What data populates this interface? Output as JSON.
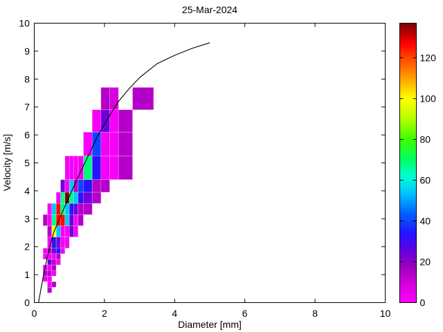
{
  "chart_data": {
    "type": "heatmap",
    "title": "25-Mar-2024",
    "xlabel": "Diameter [mm]",
    "ylabel": "Velocity [m/s]",
    "xlim": [
      0,
      10
    ],
    "ylim": [
      0,
      10
    ],
    "xticks": [
      0,
      2,
      4,
      6,
      8,
      10
    ],
    "yticks": [
      0,
      1,
      2,
      3,
      4,
      5,
      6,
      7,
      8,
      9,
      10
    ],
    "grid": false,
    "legend": "none",
    "colorbar": {
      "position": "right",
      "min": 0,
      "max": 137,
      "ticks": [
        0,
        20,
        40,
        60,
        80,
        100,
        120
      ],
      "colormap_stops": [
        [
          0,
          "#FF00FF"
        ],
        [
          10,
          "#D000D8"
        ],
        [
          18,
          "#9900BB"
        ],
        [
          26,
          "#5F00E6"
        ],
        [
          34,
          "#2414FF"
        ],
        [
          44,
          "#0064FF"
        ],
        [
          54,
          "#00C8FF"
        ],
        [
          62,
          "#00FFD2"
        ],
        [
          70,
          "#00FF64"
        ],
        [
          80,
          "#3CFF00"
        ],
        [
          90,
          "#B4FF00"
        ],
        [
          100,
          "#FFFF00"
        ],
        [
          110,
          "#FFA000"
        ],
        [
          120,
          "#FF4600"
        ],
        [
          127,
          "#FF0000"
        ],
        [
          137,
          "#7A0000"
        ]
      ]
    },
    "cells_format": [
      "d_min_mm",
      "d_max_mm",
      "v_min_ms",
      "v_max_ms",
      "count"
    ],
    "cells": [
      [
        0.375,
        0.5,
        0.35,
        0.55,
        14
      ],
      [
        0.375,
        0.5,
        0.55,
        0.75,
        2
      ],
      [
        0.5,
        0.625,
        0.55,
        0.75,
        14
      ],
      [
        0.25,
        0.375,
        0.75,
        0.95,
        2
      ],
      [
        0.375,
        0.5,
        0.75,
        0.95,
        2
      ],
      [
        0.25,
        0.375,
        0.95,
        1.15,
        14
      ],
      [
        0.375,
        0.5,
        0.95,
        1.15,
        14
      ],
      [
        0.5,
        0.625,
        0.95,
        1.15,
        2
      ],
      [
        0.25,
        0.375,
        1.15,
        1.35,
        2
      ],
      [
        0.375,
        0.5,
        1.15,
        1.35,
        2
      ],
      [
        0.5,
        0.625,
        1.15,
        1.35,
        14
      ],
      [
        0.375,
        0.5,
        1.35,
        1.55,
        24
      ],
      [
        0.5,
        0.625,
        1.35,
        1.55,
        14
      ],
      [
        0.625,
        0.75,
        1.35,
        1.55,
        2
      ],
      [
        0.25,
        0.375,
        1.55,
        1.75,
        2
      ],
      [
        0.375,
        0.5,
        1.55,
        1.75,
        2
      ],
      [
        0.5,
        0.625,
        1.55,
        1.75,
        2
      ],
      [
        0.625,
        0.75,
        1.55,
        1.75,
        14
      ],
      [
        0.25,
        0.375,
        1.75,
        1.95,
        2
      ],
      [
        0.375,
        0.5,
        1.75,
        1.95,
        14
      ],
      [
        0.5,
        0.625,
        1.75,
        1.95,
        24
      ],
      [
        0.625,
        0.75,
        1.75,
        1.95,
        33
      ],
      [
        0.75,
        0.875,
        1.75,
        1.95,
        2
      ],
      [
        0.375,
        0.5,
        1.95,
        2.35,
        2
      ],
      [
        0.5,
        0.625,
        1.95,
        2.35,
        33
      ],
      [
        0.625,
        0.75,
        1.95,
        2.35,
        24
      ],
      [
        0.75,
        0.875,
        1.95,
        2.35,
        2
      ],
      [
        0.875,
        1.0,
        1.95,
        2.35,
        2
      ],
      [
        0.375,
        0.5,
        2.35,
        2.75,
        14
      ],
      [
        0.5,
        0.625,
        2.35,
        2.75,
        100
      ],
      [
        0.625,
        0.75,
        2.35,
        2.75,
        54
      ],
      [
        0.75,
        0.875,
        2.35,
        2.75,
        2
      ],
      [
        0.875,
        1.0,
        2.35,
        2.75,
        2
      ],
      [
        1.0,
        1.125,
        2.35,
        2.75,
        24
      ],
      [
        1.125,
        1.25,
        2.35,
        2.75,
        2
      ],
      [
        0.25,
        0.375,
        2.75,
        3.15,
        14
      ],
      [
        0.375,
        0.5,
        2.75,
        3.15,
        2
      ],
      [
        0.5,
        0.625,
        2.75,
        3.15,
        68
      ],
      [
        0.625,
        0.75,
        2.75,
        3.15,
        126
      ],
      [
        0.75,
        0.875,
        2.75,
        3.15,
        126
      ],
      [
        0.875,
        1.0,
        2.75,
        3.15,
        54
      ],
      [
        1.0,
        1.125,
        2.75,
        3.15,
        24
      ],
      [
        1.125,
        1.25,
        2.75,
        3.15,
        2
      ],
      [
        1.25,
        1.4,
        2.75,
        3.15,
        14
      ],
      [
        0.375,
        0.5,
        3.15,
        3.55,
        2
      ],
      [
        0.5,
        0.625,
        3.15,
        3.55,
        54
      ],
      [
        0.625,
        0.75,
        3.15,
        3.55,
        126
      ],
      [
        0.75,
        0.875,
        3.15,
        3.55,
        68
      ],
      [
        0.875,
        1.0,
        3.15,
        3.55,
        54
      ],
      [
        1.0,
        1.125,
        3.15,
        3.55,
        33
      ],
      [
        1.125,
        1.25,
        3.15,
        3.55,
        24
      ],
      [
        1.25,
        1.4,
        3.15,
        3.55,
        14
      ],
      [
        1.4,
        1.65,
        3.15,
        3.55,
        14
      ],
      [
        0.625,
        0.75,
        3.55,
        3.95,
        2
      ],
      [
        0.75,
        0.875,
        3.55,
        3.95,
        68
      ],
      [
        0.875,
        1.0,
        3.55,
        3.95,
        137
      ],
      [
        1.0,
        1.125,
        3.55,
        3.95,
        68
      ],
      [
        1.125,
        1.25,
        3.55,
        3.95,
        54
      ],
      [
        1.25,
        1.4,
        3.55,
        3.95,
        33
      ],
      [
        1.4,
        1.65,
        3.55,
        3.95,
        24
      ],
      [
        1.65,
        1.9,
        3.55,
        3.95,
        14
      ],
      [
        0.75,
        0.875,
        3.95,
        4.4,
        24
      ],
      [
        0.875,
        1.0,
        3.95,
        4.4,
        2
      ],
      [
        1.0,
        1.125,
        3.95,
        4.4,
        54
      ],
      [
        1.125,
        1.25,
        3.95,
        4.4,
        14
      ],
      [
        1.25,
        1.4,
        3.95,
        4.4,
        40
      ],
      [
        1.4,
        1.65,
        3.95,
        4.4,
        33
      ],
      [
        1.65,
        1.9,
        3.95,
        4.4,
        14
      ],
      [
        1.9,
        2.15,
        3.95,
        4.4,
        14
      ],
      [
        0.875,
        1.0,
        4.4,
        5.25,
        2
      ],
      [
        1.0,
        1.125,
        4.4,
        5.25,
        2
      ],
      [
        1.125,
        1.25,
        4.4,
        5.25,
        2
      ],
      [
        1.25,
        1.4,
        4.4,
        5.25,
        2
      ],
      [
        1.4,
        1.65,
        4.4,
        5.25,
        68
      ],
      [
        1.65,
        1.9,
        4.4,
        5.25,
        33
      ],
      [
        1.9,
        2.15,
        4.4,
        5.25,
        2
      ],
      [
        2.15,
        2.4,
        4.4,
        5.25,
        2
      ],
      [
        2.4,
        2.8,
        4.4,
        5.25,
        14
      ],
      [
        1.4,
        1.65,
        5.25,
        6.1,
        2
      ],
      [
        1.65,
        1.9,
        5.25,
        6.1,
        40
      ],
      [
        1.9,
        2.15,
        5.25,
        6.1,
        2
      ],
      [
        2.15,
        2.4,
        5.25,
        6.1,
        2
      ],
      [
        2.4,
        2.8,
        5.25,
        6.1,
        14
      ],
      [
        1.65,
        1.9,
        6.1,
        6.9,
        2
      ],
      [
        1.9,
        2.15,
        6.1,
        6.9,
        24
      ],
      [
        2.15,
        2.4,
        6.1,
        6.9,
        2
      ],
      [
        2.4,
        2.8,
        6.1,
        6.9,
        14
      ],
      [
        1.9,
        2.15,
        6.9,
        7.7,
        14
      ],
      [
        2.15,
        2.4,
        6.9,
        7.7,
        8
      ],
      [
        2.8,
        3.4,
        6.9,
        7.7,
        14
      ]
    ],
    "curve": {
      "label": "terminal-velocity-curve",
      "color": "#000000",
      "points": [
        [
          0.12,
          0
        ],
        [
          0.25,
          0.9
        ],
        [
          0.4,
          1.8
        ],
        [
          0.55,
          2.5
        ],
        [
          0.75,
          3.1
        ],
        [
          1.0,
          3.8
        ],
        [
          1.25,
          4.5
        ],
        [
          1.5,
          5.15
        ],
        [
          1.8,
          5.95
        ],
        [
          2.1,
          6.6
        ],
        [
          2.4,
          7.2
        ],
        [
          2.7,
          7.65
        ],
        [
          3.0,
          8.05
        ],
        [
          3.5,
          8.55
        ],
        [
          4.0,
          8.85
        ],
        [
          4.5,
          9.1
        ],
        [
          5.0,
          9.3
        ]
      ]
    }
  }
}
